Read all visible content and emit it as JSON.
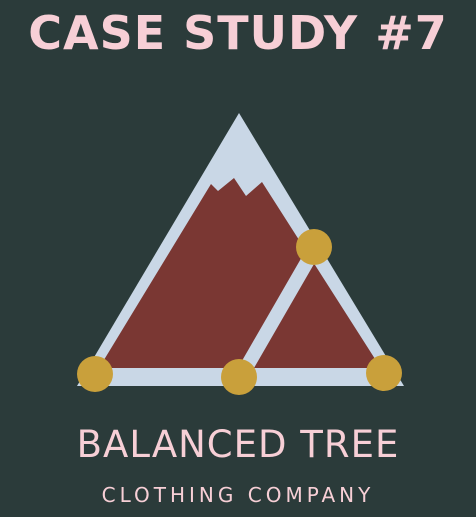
{
  "headline": "CASE STUDY #7",
  "brand": {
    "name": "BALANCED TREE",
    "tagline": "CLOTHING COMPANY"
  },
  "colors": {
    "background": "#2b3b3a",
    "text": "#f7cfd6",
    "mountain_outline": "#c9d7e6",
    "mountain_fill": "#7a3733",
    "node": "#c9a03b"
  },
  "logo": {
    "icon": "mountain-network-icon"
  }
}
